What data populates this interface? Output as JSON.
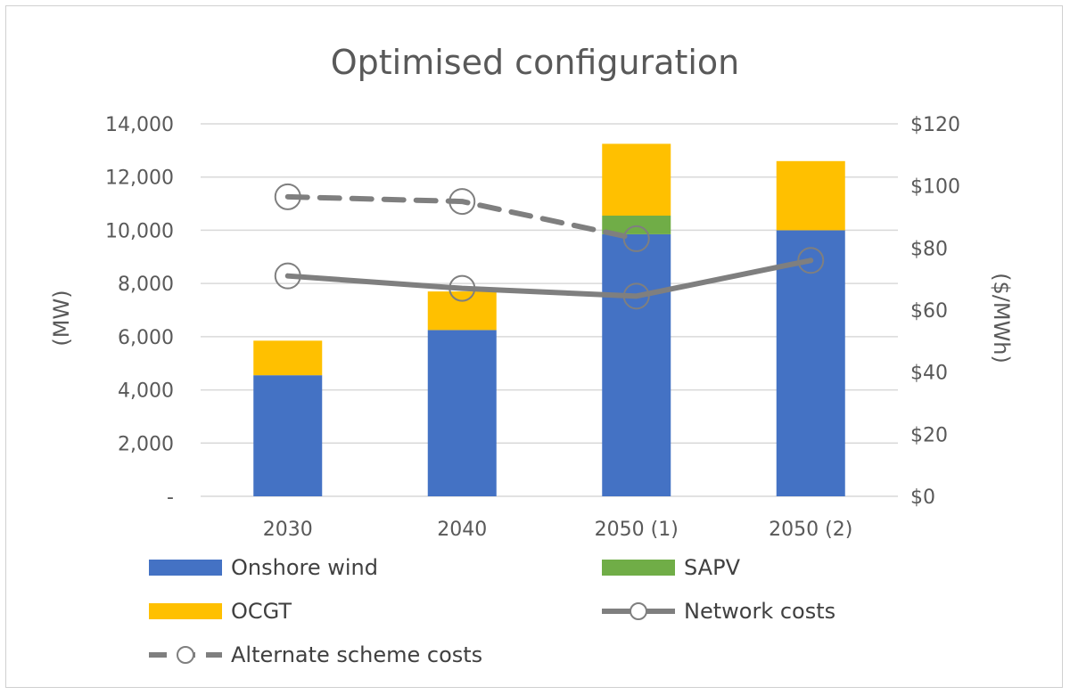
{
  "chart_data": {
    "type": "bar",
    "title": "Optimised configuration",
    "categories": [
      "2030",
      "2040",
      "2050 (1)",
      "2050 (2)"
    ],
    "ylabel": "(MW)",
    "y2label": "($/MWh)",
    "ylim": [
      0,
      14000
    ],
    "y2lim": [
      0,
      120
    ],
    "y_ticks": [
      "-",
      "2,000",
      "4,000",
      "6,000",
      "8,000",
      "10,000",
      "12,000",
      "14,000"
    ],
    "y2_ticks": [
      "$0",
      "$20",
      "$40",
      "$60",
      "$80",
      "$100",
      "$120"
    ],
    "grid": true,
    "legend_position": "bottom",
    "stacked_series": [
      {
        "name": "Onshore wind",
        "color": "#4472C4",
        "values": [
          4550,
          6250,
          9850,
          10000
        ]
      },
      {
        "name": "SAPV",
        "color": "#70AD47",
        "values": [
          0,
          0,
          700,
          0
        ]
      },
      {
        "name": "OCGT",
        "color": "#FFC000",
        "values": [
          1300,
          1450,
          2700,
          2600
        ]
      }
    ],
    "line_series": [
      {
        "name": "Network costs",
        "color": "#7F7F7F",
        "style": "solid",
        "axis": "secondary",
        "values": [
          71,
          67,
          64.5,
          76
        ]
      },
      {
        "name": "Alternate scheme costs",
        "color": "#7F7F7F",
        "style": "dashed",
        "axis": "secondary",
        "values": [
          96.5,
          95,
          83,
          null
        ]
      }
    ],
    "legend_order": [
      "Onshore wind",
      "SAPV",
      "OCGT",
      "Network costs",
      "Alternate scheme costs"
    ]
  }
}
